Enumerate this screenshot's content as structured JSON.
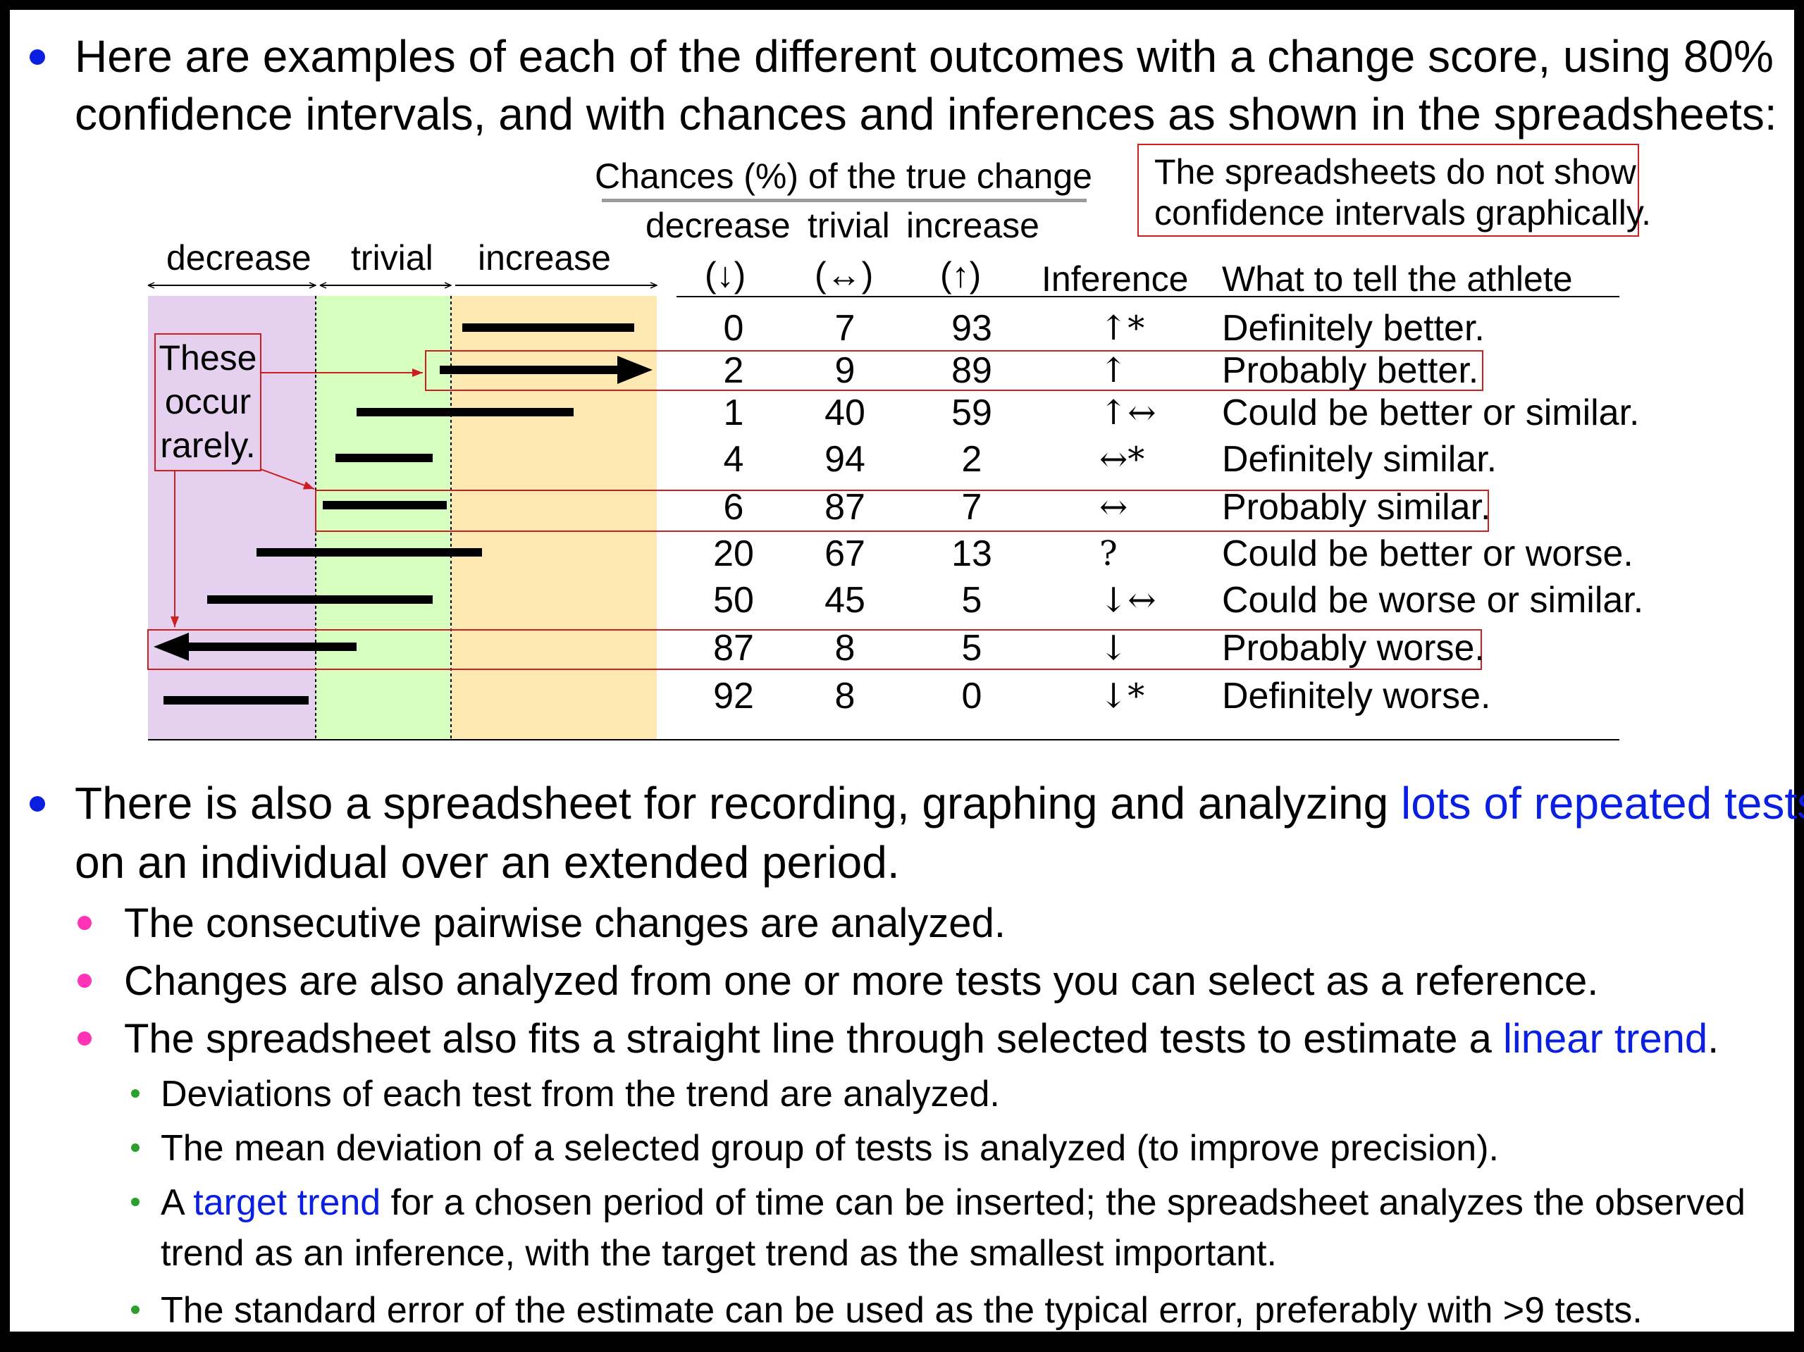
{
  "bullet1": {
    "line1": "Here are examples of each of the different outcomes with a change score, using 80%",
    "line2": "confidence intervals, and with chances and inferences as shown in the spreadsheets:"
  },
  "table": {
    "chances_title": "Chances (%) of the true change",
    "note_line1": "The spreadsheets do not show",
    "note_line2": "confidence intervals graphically.",
    "band_labels": {
      "decrease": "decrease",
      "trivial": "trivial",
      "increase": "increase"
    },
    "col_headers": {
      "decrease": "decrease",
      "decrease_sym": "(↓)",
      "trivial": "trivial",
      "trivial_sym": "(↔)",
      "increase": "increase",
      "increase_sym": "(↑)",
      "inference": "Inference",
      "tell": "What to tell the athlete"
    },
    "rare_note": {
      "line1": "These",
      "line2": "occur",
      "line3": "rarely."
    },
    "rows": [
      {
        "decrease": "0",
        "trivial": "7",
        "increase": "93",
        "inference": "↑*",
        "tell": "Definitely better."
      },
      {
        "decrease": "2",
        "trivial": "9",
        "increase": "89",
        "inference": "↑",
        "tell": "Probably better."
      },
      {
        "decrease": "1",
        "trivial": "40",
        "increase": "59",
        "inference": "↑↔",
        "tell": "Could be better or similar."
      },
      {
        "decrease": "4",
        "trivial": "94",
        "increase": "2",
        "inference": "↔*",
        "tell": "Definitely similar."
      },
      {
        "decrease": "6",
        "trivial": "87",
        "increase": "7",
        "inference": "↔",
        "tell": "Probably similar."
      },
      {
        "decrease": "20",
        "trivial": "67",
        "increase": "13",
        "inference": "?",
        "tell": "Could be better or worse."
      },
      {
        "decrease": "50",
        "trivial": "45",
        "increase": "5",
        "inference": "↓↔",
        "tell": "Could be worse or similar."
      },
      {
        "decrease": "87",
        "trivial": "8",
        "increase": "5",
        "inference": "↓",
        "tell": "Probably worse."
      },
      {
        "decrease": "92",
        "trivial": "8",
        "increase": "0",
        "inference": "↓*",
        "tell": "Definitely worse."
      }
    ],
    "colors": {
      "decrease": "#e6d0ef",
      "trivial": "#d6ffc0",
      "increase": "#ffe9b3",
      "highlight": "#cc1f1f"
    }
  },
  "bullet2": {
    "text_before": "There is also a spreadsheet for recording, graphing and analyzing ",
    "link": "lots of repeated tests",
    "line2": "on an individual over an extended period."
  },
  "sub_bullets": [
    "The consecutive pairwise changes are analyzed.",
    "Changes are also analyzed from one or more tests you can select as a reference."
  ],
  "sub_bullet3": {
    "text_before": "The spreadsheet also fits a straight line through selected tests to estimate a ",
    "link": "linear trend",
    "text_after": "."
  },
  "sub_sub_bullets": {
    "item1": "Deviations of each test from the trend are analyzed.",
    "item2": "The mean deviation of a selected group of tests is analyzed (to improve precision).",
    "item3_prefix": "A ",
    "item3_link": "target trend",
    "item3_rest": " for a chosen period of time can be inserted; the spreadsheet analyzes the observed",
    "item3_line2": "trend as an inference, with the target trend as the smallest important.",
    "item4": "The standard error of the estimate can be used as the typical error, preferably with >9 tests."
  },
  "bullet_colors": {
    "level1": "#0a1fe0",
    "level2": "#ff33b5",
    "level3": "#2ca02c"
  }
}
